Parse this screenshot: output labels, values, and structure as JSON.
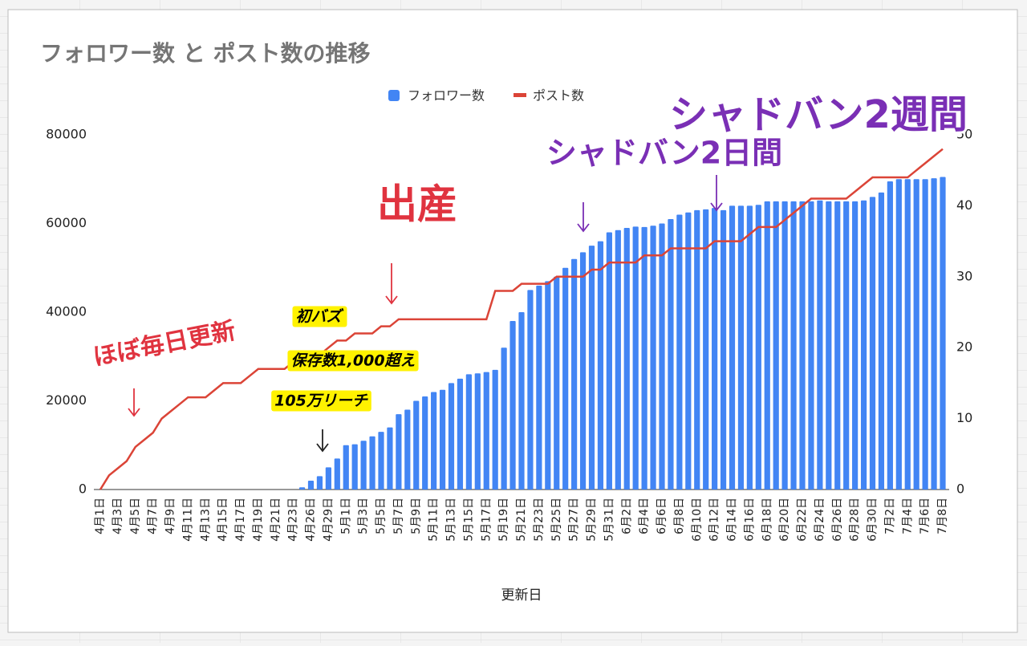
{
  "chart_data": {
    "type": "bar_line",
    "title": "フォロワー数 と ポスト数の推移",
    "x_label": "更新日",
    "categories": [
      "4月1日",
      null,
      "4月3日",
      null,
      "4月5日",
      null,
      "4月7日",
      null,
      "4月9日",
      null,
      "4月11日",
      null,
      "4月13日",
      null,
      "4月15日",
      null,
      "4月17日",
      null,
      "4月19日",
      null,
      "4月21日",
      null,
      "4月23日",
      null,
      "4月26日",
      null,
      "4月29日",
      null,
      "5月1日",
      null,
      "5月3日",
      null,
      "5月5日",
      null,
      "5月7日",
      null,
      "5月9日",
      null,
      "5月11日",
      null,
      "5月13日",
      null,
      "5月15日",
      null,
      "5月17日",
      null,
      "5月19日",
      null,
      "5月21日",
      null,
      "5月23日",
      null,
      "5月25日",
      null,
      "5月27日",
      null,
      "5月29日",
      null,
      "5月31日",
      null,
      "6月2日",
      null,
      "6月4日",
      null,
      "6月6日",
      null,
      "6月8日",
      null,
      "6月10日",
      null,
      "6月12日",
      null,
      "6月14日",
      null,
      "6月16日",
      null,
      "6月18日",
      null,
      "6月20日",
      null,
      "6月22日",
      null,
      "6月24日",
      null,
      "6月26日",
      null,
      "6月28日",
      null,
      "6月30日",
      null,
      "7月2日",
      null,
      "7月4日",
      null,
      "7月6日",
      null,
      "7月8日"
    ],
    "series": [
      {
        "name": "フォロワー数",
        "color": "#4285f4",
        "kind": "bar",
        "values": [
          0,
          0,
          0,
          0,
          0,
          0,
          0,
          0,
          0,
          0,
          0,
          0,
          0,
          0,
          0,
          0,
          0,
          0,
          0,
          0,
          0,
          0,
          0,
          500,
          2000,
          3000,
          5000,
          7000,
          10000,
          10200,
          11000,
          12000,
          13000,
          14000,
          17000,
          18000,
          20000,
          21000,
          22000,
          22500,
          24000,
          25000,
          26000,
          26200,
          26500,
          27000,
          32000,
          38000,
          40000,
          45000,
          46000,
          47000,
          48000,
          50000,
          52000,
          53500,
          55000,
          56000,
          58000,
          58500,
          59000,
          59300,
          59200,
          59500,
          60000,
          61000,
          62000,
          62500,
          63000,
          63200,
          63500,
          63000,
          64000,
          64000,
          64000,
          64200,
          65000,
          65000,
          65000,
          65000,
          65000,
          65000,
          65200,
          65000,
          65000,
          65000,
          65000,
          65200,
          66000,
          67000,
          69500,
          70000,
          70000,
          70000,
          70000,
          70200,
          70500
        ]
      },
      {
        "name": "ポスト数",
        "color": "#db4437",
        "kind": "line",
        "axis": "y2",
        "values": [
          0,
          2,
          3,
          4,
          6,
          7,
          8,
          10,
          11,
          12,
          13,
          13,
          13,
          14,
          15,
          15,
          15,
          16,
          17,
          17,
          17,
          17,
          18,
          19,
          19,
          19,
          20,
          21,
          21,
          22,
          22,
          22,
          23,
          23,
          24,
          24,
          24,
          24,
          24,
          24,
          24,
          24,
          24,
          24,
          24,
          28,
          28,
          28,
          29,
          29,
          29,
          29,
          30,
          30,
          30,
          30,
          31,
          31,
          32,
          32,
          32,
          32,
          33,
          33,
          33,
          34,
          34,
          34,
          34,
          34,
          35,
          35,
          35,
          35,
          36,
          37,
          37,
          37,
          38,
          39,
          40,
          41,
          41,
          41,
          41,
          41,
          42,
          43,
          44,
          44,
          44,
          44,
          44,
          45,
          46,
          47,
          48
        ]
      }
    ],
    "ylim": [
      0,
      80000
    ],
    "yticks": [
      0,
      20000,
      40000,
      60000,
      80000
    ],
    "y2lim": [
      0,
      50
    ],
    "y2ticks": [
      0,
      10,
      20,
      30,
      40,
      50
    ],
    "legend": "top",
    "annotations": [
      {
        "text": "ほぼ毎日更新",
        "color": "#e0333f"
      },
      {
        "text": "初バズ",
        "color": "#000000"
      },
      {
        "text": "保存数1,000超え",
        "color": "#000000"
      },
      {
        "text": "105万リーチ",
        "color": "#000000"
      },
      {
        "text": "出産",
        "color": "#e0333f"
      },
      {
        "text": "シャドバン2日間",
        "color": "#7a2fb5"
      },
      {
        "text": "シャドバン2週間",
        "color": "#7a2fb5"
      }
    ]
  }
}
